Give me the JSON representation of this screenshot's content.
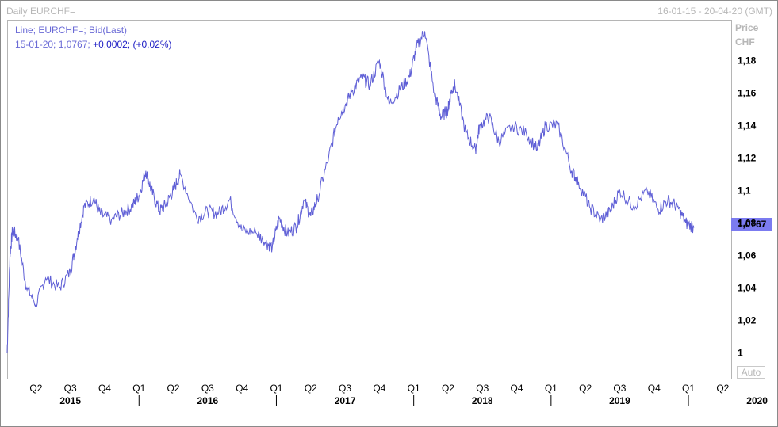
{
  "header": {
    "title": "Daily EURCHF=",
    "range": "16-01-15 - 20-04-20 (GMT)"
  },
  "legend": {
    "line1": "Line; EURCHF=; Bid(Last)",
    "line2_prefix": "15-01-20; 1,0767; ",
    "line2_change": "+0,0002; (+0,02%)"
  },
  "axis": {
    "price_label": "Price",
    "currency_label": "CHF",
    "last_value": "1,0767",
    "auto_label": "Auto"
  },
  "colors": {
    "line": "#5f5fd6",
    "last_tag": "#7b7bf0"
  },
  "chart_data": {
    "type": "line",
    "title": "Daily EURCHF=",
    "series": [
      {
        "name": "Line; EURCHF=; Bid(Last)",
        "x": [
          2015.04,
          2015.06,
          2015.08,
          2015.12,
          2015.18,
          2015.25,
          2015.32,
          2015.42,
          2015.5,
          2015.55,
          2015.6,
          2015.67,
          2015.72,
          2015.8,
          2015.88,
          2015.95,
          2016.0,
          2016.05,
          2016.09,
          2016.15,
          2016.2,
          2016.25,
          2016.3,
          2016.42,
          2016.5,
          2016.58,
          2016.66,
          2016.75,
          2016.85,
          2016.92,
          2016.97,
          2017.02,
          2017.08,
          2017.15,
          2017.2,
          2017.25,
          2017.3,
          2017.38,
          2017.45,
          2017.5,
          2017.55,
          2017.62,
          2017.68,
          2017.75,
          2017.82,
          2017.9,
          2017.97,
          2018.02,
          2018.08,
          2018.15,
          2018.2,
          2018.25,
          2018.27,
          2018.3,
          2018.38,
          2018.45,
          2018.48,
          2018.55,
          2018.62,
          2018.72,
          2018.82,
          2018.9,
          2018.96,
          2019.05,
          2019.15,
          2019.2,
          2019.28,
          2019.36,
          2019.43,
          2019.5,
          2019.6,
          2019.7,
          2019.78,
          2019.85,
          2019.92,
          2019.98,
          2020.04
        ],
        "values": [
          1.0,
          1.06,
          1.076,
          1.07,
          1.04,
          1.03,
          1.046,
          1.04,
          1.05,
          1.07,
          1.09,
          1.095,
          1.085,
          1.082,
          1.086,
          1.09,
          1.097,
          1.112,
          1.1,
          1.087,
          1.092,
          1.1,
          1.11,
          1.083,
          1.087,
          1.086,
          1.094,
          1.075,
          1.074,
          1.068,
          1.065,
          1.083,
          1.073,
          1.078,
          1.094,
          1.084,
          1.095,
          1.12,
          1.145,
          1.152,
          1.161,
          1.17,
          1.165,
          1.18,
          1.153,
          1.162,
          1.17,
          1.188,
          1.198,
          1.16,
          1.145,
          1.15,
          1.16,
          1.165,
          1.135,
          1.125,
          1.14,
          1.145,
          1.13,
          1.14,
          1.135,
          1.125,
          1.14,
          1.14,
          1.112,
          1.105,
          1.09,
          1.082,
          1.087,
          1.1,
          1.09,
          1.1,
          1.088,
          1.094,
          1.09,
          1.08,
          1.077
        ]
      }
    ],
    "ylim": [
      0.985,
      1.205
    ],
    "yticks": [
      "1",
      "1,02",
      "1,04",
      "1,06",
      "1,08",
      "1,1",
      "1,12",
      "1,14",
      "1,16",
      "1,18"
    ],
    "quarter_ticks": [
      "Q2",
      "Q3",
      "Q4",
      "Q1",
      "Q2",
      "Q3",
      "Q4",
      "Q1",
      "Q2",
      "Q3",
      "Q4",
      "Q1",
      "Q2",
      "Q3",
      "Q4",
      "Q1",
      "Q2",
      "Q3",
      "Q4",
      "Q1",
      "Q2"
    ],
    "year_labels": [
      "2015",
      "2016",
      "2017",
      "2018",
      "2019",
      "2020"
    ],
    "grid": false
  }
}
